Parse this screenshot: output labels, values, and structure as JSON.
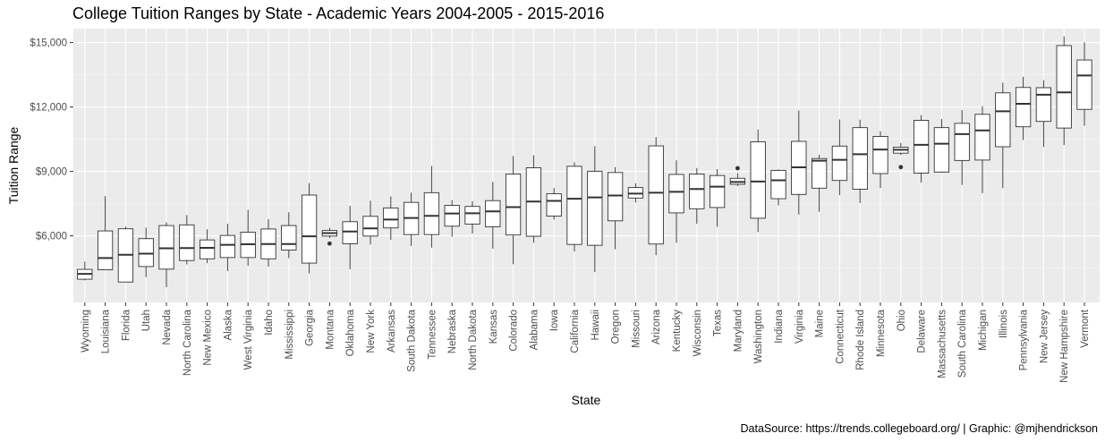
{
  "chart_data": {
    "type": "boxplot",
    "title": "College Tuition Ranges by State - Academic Years 2004-2005 - 2015-2016",
    "caption": "DataSource: https://trends.collegeboard.org/ | Graphic: @mjhendrickson",
    "xlabel": "State",
    "ylabel": "Tuition Range",
    "ylim": [
      2900,
      15650
    ],
    "yticks": [
      6000,
      9000,
      12000,
      15000
    ],
    "ytick_labels": [
      "$6,000",
      "$9,000",
      "$12,000",
      "$15,000"
    ],
    "grid": true,
    "categories": [
      "Wyoming",
      "Louisiana",
      "Florida",
      "Utah",
      "Nevada",
      "North Carolina",
      "New Mexico",
      "Alaska",
      "West Virginia",
      "Idaho",
      "Mississippi",
      "Georgia",
      "Montana",
      "Oklahoma",
      "New York",
      "Arkansas",
      "South Dakota",
      "Tennessee",
      "Nebraska",
      "North Dakota",
      "Kansas",
      "Colorado",
      "Alabama",
      "Iowa",
      "California",
      "Hawaii",
      "Oregon",
      "Missouri",
      "Arizona",
      "Kentucky",
      "Wisconsin",
      "Texas",
      "Maryland",
      "Washington",
      "Indiana",
      "Virginia",
      "Maine",
      "Connecticut",
      "Rhode Island",
      "Minnesota",
      "Ohio",
      "Delaware",
      "Massachusetts",
      "South Carolina",
      "Michigan",
      "Illinois",
      "Pennsylvania",
      "New Jersey",
      "New Hampshire",
      "Vermont"
    ],
    "boxes": [
      {
        "min": 3930,
        "q1": 3980,
        "median": 4230,
        "q3": 4440,
        "max": 4800,
        "outliers": []
      },
      {
        "min": 4420,
        "q1": 4420,
        "median": 4970,
        "q3": 6230,
        "max": 7850,
        "outliers": []
      },
      {
        "min": 3850,
        "q1": 3850,
        "median": 5120,
        "q3": 6330,
        "max": 6430,
        "outliers": []
      },
      {
        "min": 4080,
        "q1": 4570,
        "median": 5170,
        "q3": 5870,
        "max": 6380,
        "outliers": []
      },
      {
        "min": 3610,
        "q1": 4450,
        "median": 5420,
        "q3": 6480,
        "max": 6630,
        "outliers": []
      },
      {
        "min": 4670,
        "q1": 4850,
        "median": 5430,
        "q3": 6510,
        "max": 6970,
        "outliers": []
      },
      {
        "min": 4730,
        "q1": 4930,
        "median": 5440,
        "q3": 5810,
        "max": 6300,
        "outliers": []
      },
      {
        "min": 4360,
        "q1": 4990,
        "median": 5580,
        "q3": 6020,
        "max": 6560,
        "outliers": []
      },
      {
        "min": 4610,
        "q1": 4990,
        "median": 5610,
        "q3": 6170,
        "max": 7210,
        "outliers": []
      },
      {
        "min": 4570,
        "q1": 4930,
        "median": 5620,
        "q3": 6320,
        "max": 6780,
        "outliers": []
      },
      {
        "min": 4960,
        "q1": 5340,
        "median": 5620,
        "q3": 6480,
        "max": 7100,
        "outliers": []
      },
      {
        "min": 4250,
        "q1": 4730,
        "median": 5980,
        "q3": 7900,
        "max": 8460,
        "outliers": []
      },
      {
        "min": 5900,
        "q1": 5990,
        "median": 6130,
        "q3": 6250,
        "max": 6370,
        "outliers": [
          5640
        ]
      },
      {
        "min": 4440,
        "q1": 5630,
        "median": 6200,
        "q3": 6660,
        "max": 7400,
        "outliers": []
      },
      {
        "min": 5600,
        "q1": 5990,
        "median": 6350,
        "q3": 6910,
        "max": 7640,
        "outliers": []
      },
      {
        "min": 5810,
        "q1": 6370,
        "median": 6760,
        "q3": 7300,
        "max": 7840,
        "outliers": []
      },
      {
        "min": 5530,
        "q1": 6060,
        "median": 6830,
        "q3": 7560,
        "max": 8010,
        "outliers": []
      },
      {
        "min": 5450,
        "q1": 6060,
        "median": 6930,
        "q3": 8010,
        "max": 9250,
        "outliers": []
      },
      {
        "min": 5960,
        "q1": 6450,
        "median": 7040,
        "q3": 7420,
        "max": 7660,
        "outliers": []
      },
      {
        "min": 6110,
        "q1": 6550,
        "median": 7050,
        "q3": 7370,
        "max": 7610,
        "outliers": []
      },
      {
        "min": 5400,
        "q1": 6420,
        "median": 7140,
        "q3": 7640,
        "max": 8510,
        "outliers": []
      },
      {
        "min": 4680,
        "q1": 6040,
        "median": 7340,
        "q3": 8880,
        "max": 9720,
        "outliers": []
      },
      {
        "min": 5680,
        "q1": 5980,
        "median": 7600,
        "q3": 9170,
        "max": 9750,
        "outliers": []
      },
      {
        "min": 6760,
        "q1": 6920,
        "median": 7630,
        "q3": 7960,
        "max": 8220,
        "outliers": []
      },
      {
        "min": 5270,
        "q1": 5600,
        "median": 7730,
        "q3": 9240,
        "max": 9420,
        "outliers": []
      },
      {
        "min": 4310,
        "q1": 5560,
        "median": 7790,
        "q3": 9010,
        "max": 10180,
        "outliers": []
      },
      {
        "min": 5380,
        "q1": 6700,
        "median": 7880,
        "q3": 8950,
        "max": 9200,
        "outliers": []
      },
      {
        "min": 7550,
        "q1": 7760,
        "median": 7970,
        "q3": 8250,
        "max": 8450,
        "outliers": []
      },
      {
        "min": 5100,
        "q1": 5620,
        "median": 8010,
        "q3": 10190,
        "max": 10600,
        "outliers": []
      },
      {
        "min": 5680,
        "q1": 7070,
        "median": 8050,
        "q3": 8860,
        "max": 9520,
        "outliers": []
      },
      {
        "min": 6560,
        "q1": 7260,
        "median": 8180,
        "q3": 8880,
        "max": 9160,
        "outliers": []
      },
      {
        "min": 6420,
        "q1": 7320,
        "median": 8290,
        "q3": 8810,
        "max": 9110,
        "outliers": []
      },
      {
        "min": 8320,
        "q1": 8400,
        "median": 8510,
        "q3": 8680,
        "max": 8920,
        "outliers": [
          9150
        ]
      },
      {
        "min": 6180,
        "q1": 6820,
        "median": 8530,
        "q3": 10380,
        "max": 10950,
        "outliers": []
      },
      {
        "min": 7420,
        "q1": 7730,
        "median": 8590,
        "q3": 9050,
        "max": 9100,
        "outliers": []
      },
      {
        "min": 6990,
        "q1": 7930,
        "median": 9190,
        "q3": 10400,
        "max": 11840,
        "outliers": []
      },
      {
        "min": 7120,
        "q1": 8220,
        "median": 9500,
        "q3": 9600,
        "max": 9780,
        "outliers": []
      },
      {
        "min": 7900,
        "q1": 8580,
        "median": 9540,
        "q3": 10180,
        "max": 11420,
        "outliers": []
      },
      {
        "min": 7530,
        "q1": 8170,
        "median": 9800,
        "q3": 11040,
        "max": 11410,
        "outliers": []
      },
      {
        "min": 8230,
        "q1": 8900,
        "median": 10020,
        "q3": 10630,
        "max": 10870,
        "outliers": []
      },
      {
        "min": 9760,
        "q1": 9850,
        "median": 10010,
        "q3": 10130,
        "max": 10330,
        "outliers": [
          9200
        ]
      },
      {
        "min": 8480,
        "q1": 8920,
        "median": 10240,
        "q3": 11380,
        "max": 11620,
        "outliers": []
      },
      {
        "min": 8950,
        "q1": 8970,
        "median": 10290,
        "q3": 11040,
        "max": 11440,
        "outliers": []
      },
      {
        "min": 8370,
        "q1": 9510,
        "median": 10740,
        "q3": 11240,
        "max": 11860,
        "outliers": []
      },
      {
        "min": 7990,
        "q1": 9530,
        "median": 10910,
        "q3": 11660,
        "max": 12040,
        "outliers": []
      },
      {
        "min": 8220,
        "q1": 10150,
        "median": 11800,
        "q3": 12660,
        "max": 13140,
        "outliers": []
      },
      {
        "min": 10460,
        "q1": 11080,
        "median": 12150,
        "q3": 12910,
        "max": 13410,
        "outliers": []
      },
      {
        "min": 10140,
        "q1": 11330,
        "median": 12570,
        "q3": 12900,
        "max": 13250,
        "outliers": []
      },
      {
        "min": 10230,
        "q1": 11020,
        "median": 12680,
        "q3": 14860,
        "max": 15290,
        "outliers": []
      },
      {
        "min": 11130,
        "q1": 11890,
        "median": 13470,
        "q3": 14190,
        "max": 15010,
        "outliers": []
      }
    ]
  }
}
